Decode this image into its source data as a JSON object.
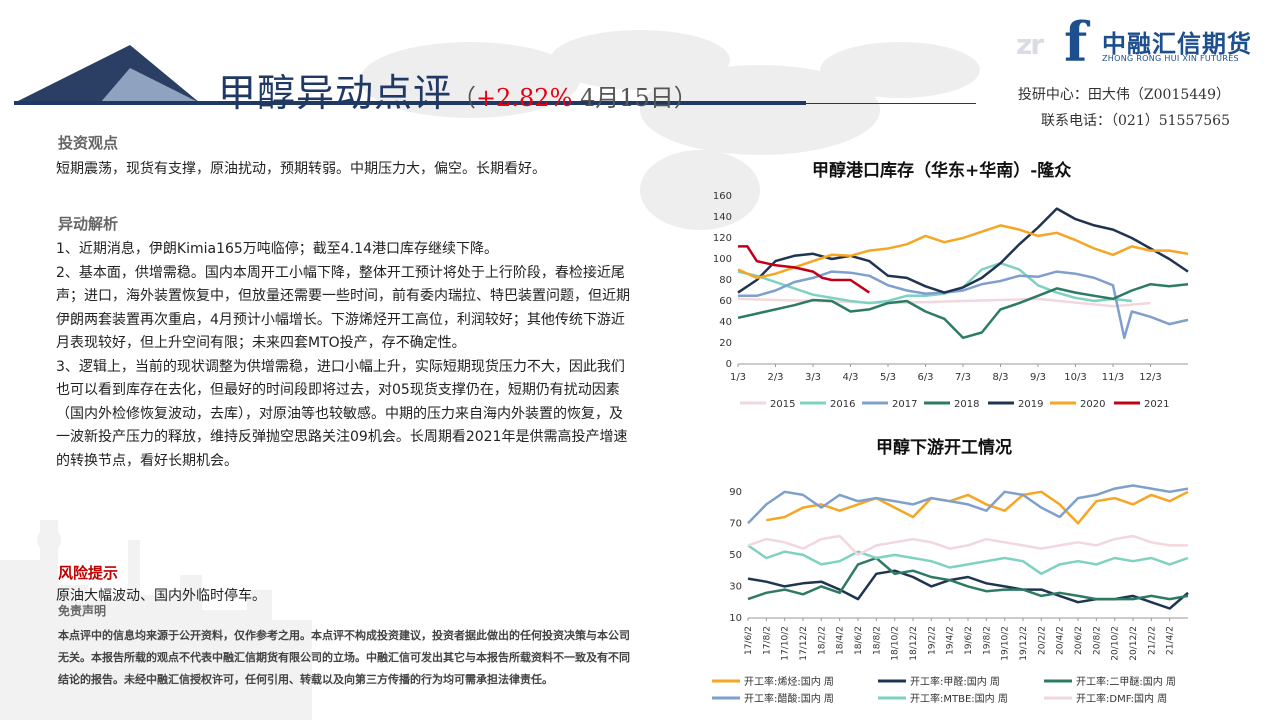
{
  "header": {
    "title": "甲醇异动点评",
    "open_paren": "（",
    "change": "+2.82%",
    "date": " 4月15日）",
    "logo_cn": "中融汇信期货",
    "logo_en": "ZHONG RONG HUI XIN FUTURES",
    "logo_f": "f",
    "logo_mark": "zr",
    "analyst": "投研中心：田大伟（Z0015449）",
    "phone": "联系电话：（021）51557565"
  },
  "view": {
    "heading": "投资观点",
    "text": "短期震荡，现货有支撑，原油扰动，预期转弱。中期压力大，偏空。长期看好。"
  },
  "analysis": {
    "heading": "异动解析",
    "p1": "1、近期消息，伊朗Kimia165万吨临停；截至4.14港口库存继续下降。",
    "p2": "2、基本面，供增需稳。国内本周开工小幅下降，整体开工预计将处于上行阶段，春检接近尾声；进口，海外装置恢复中，但放量还需要一些时间，前有委内瑞拉、特巴装置问题，但近期伊朗两套装置再次重启，4月预计小幅增长。下游烯烃开工高位，利润较好；其他传统下游近月表现较好，但上升空间有限；未来四套MTO投产，存不确定性。",
    "p3": "3、逻辑上，当前的现状调整为供增需稳，进口小幅上升，实际短期现货压力不大，因此我们也可以看到库存在去化，但最好的时间段即将过去，对05现货支撑仍在，短期仍有扰动因素（国内外检修恢复波动，去库），对原油等也较敏感。中期的压力来自海内外装置的恢复，及一波新投产压力的释放，维持反弹抛空思路关注09机会。长周期看2021年是供需高投产增速的转换节点，看好长期机会。"
  },
  "risk": {
    "heading": "风险提示",
    "text": "原油大幅波动、国内外临时停车。"
  },
  "disclaimer": {
    "heading": "免责声明",
    "text": "本点评中的信息均来源于公开资料，仅作参考之用。本点评不构成投资建议，投资者据此做出的任何投资决策与本公司无关。本报告所载的观点不代表中融汇信期货有限公司的立场。中融汇信可发出其它与本报告所载资料不一致及有不同结论的报告。未经中融汇信授权许可，任何引用、转载以及向第三方传播的行为均可需承担法律责任。"
  },
  "colors": {
    "navy": "#1f3864",
    "accent_red": "#e60012",
    "s2015": "#f2d7dc",
    "s2016": "#7fd1c2",
    "s2017": "#7f9fcc",
    "s2018": "#2e7b64",
    "s2019": "#1f3451",
    "s2020": "#f5a623",
    "s2021": "#c0001a"
  },
  "chart_data": [
    {
      "type": "line",
      "title": "甲醇港口库存（华东+华南）-隆众",
      "x_ticks": [
        "1/3",
        "2/3",
        "3/3",
        "4/3",
        "5/3",
        "6/3",
        "7/3",
        "8/3",
        "9/3",
        "10/3",
        "11/3",
        "12/3"
      ],
      "ylim": [
        0,
        160
      ],
      "y_ticks": [
        0,
        20,
        40,
        60,
        80,
        100,
        120,
        140,
        160
      ],
      "legend_position": "bottom",
      "series": [
        {
          "name": "2015",
          "color": "#f2d7dc",
          "x": [
            1,
            3,
            5,
            7,
            9,
            11,
            12
          ],
          "y": [
            62,
            60,
            58,
            60,
            62,
            55,
            58
          ]
        },
        {
          "name": "2016",
          "color": "#7fd1c2",
          "x": [
            1,
            1.5,
            2,
            2.5,
            3,
            3.5,
            4,
            4.5,
            5,
            5.5,
            6,
            6.5,
            7,
            7.5,
            8,
            8.5,
            9,
            9.5,
            10,
            10.5,
            11,
            11.5
          ],
          "y": [
            88,
            84,
            78,
            72,
            66,
            63,
            60,
            58,
            60,
            65,
            65,
            67,
            73,
            90,
            96,
            90,
            75,
            68,
            63,
            60,
            62,
            60
          ]
        },
        {
          "name": "2017",
          "color": "#7f9fcc",
          "x": [
            1,
            1.5,
            2,
            2.5,
            3,
            3.5,
            4,
            4.5,
            5,
            5.5,
            6,
            6.5,
            7,
            7.5,
            8,
            8.5,
            9,
            9.5,
            10,
            10.5,
            11,
            11.3,
            11.5,
            12,
            12.5,
            13
          ],
          "y": [
            65,
            65,
            70,
            78,
            82,
            88,
            87,
            84,
            75,
            70,
            67,
            68,
            70,
            76,
            79,
            84,
            83,
            88,
            86,
            82,
            75,
            25,
            50,
            45,
            38,
            42
          ]
        },
        {
          "name": "2018",
          "color": "#2e7b64",
          "x": [
            1,
            1.5,
            2,
            2.5,
            3,
            3.5,
            4,
            4.5,
            5,
            5.5,
            6,
            6.5,
            7,
            7.5,
            8,
            8.5,
            9,
            9.5,
            10,
            10.5,
            11,
            11.5,
            12,
            12.5,
            13
          ],
          "y": [
            44,
            48,
            52,
            56,
            61,
            60,
            50,
            52,
            58,
            60,
            50,
            43,
            25,
            30,
            52,
            58,
            65,
            72,
            68,
            65,
            62,
            70,
            76,
            74,
            76
          ]
        },
        {
          "name": "2019",
          "color": "#1f3451",
          "x": [
            1,
            1.5,
            2,
            2.5,
            3,
            3.5,
            4,
            4.5,
            5,
            5.5,
            6,
            6.5,
            7,
            7.5,
            8,
            8.5,
            9,
            9.5,
            10,
            10.5,
            11,
            11.5,
            12,
            12.5,
            13
          ],
          "y": [
            68,
            80,
            98,
            103,
            105,
            100,
            103,
            98,
            84,
            82,
            74,
            68,
            73,
            82,
            96,
            114,
            130,
            148,
            138,
            132,
            128,
            120,
            110,
            100,
            88
          ]
        },
        {
          "name": "2020",
          "color": "#f5a623",
          "x": [
            1,
            1.5,
            2,
            2.5,
            3,
            3.5,
            4,
            4.5,
            5,
            5.5,
            6,
            6.5,
            7,
            7.5,
            8,
            8.5,
            9,
            9.5,
            10,
            10.5,
            11,
            11.5,
            12,
            12.5,
            13
          ],
          "y": [
            90,
            82,
            86,
            92,
            98,
            104,
            103,
            108,
            110,
            114,
            122,
            116,
            120,
            126,
            132,
            128,
            122,
            125,
            118,
            110,
            104,
            112,
            108,
            108,
            105
          ]
        },
        {
          "name": "2021",
          "color": "#c0001a",
          "x": [
            1,
            1.25,
            1.5,
            2,
            2.5,
            3,
            3.25,
            3.5,
            4,
            4.5
          ],
          "y": [
            112,
            112,
            98,
            94,
            92,
            88,
            82,
            80,
            80,
            68
          ]
        }
      ]
    },
    {
      "type": "line",
      "title": "甲醇下游开工情况",
      "x_ticks": [
        "17/6/2",
        "17/8/2",
        "17/10/2",
        "17/12/2",
        "18/2/2",
        "18/4/2",
        "18/6/2",
        "18/8/2",
        "18/10/2",
        "18/12/2",
        "19/2/2",
        "19/4/2",
        "19/6/2",
        "19/8/2",
        "19/10/2",
        "19/12/2",
        "20/2/2",
        "20/4/2",
        "20/6/2",
        "20/8/2",
        "20/10/2",
        "20/12/2",
        "21/2/2",
        "21/4/2"
      ],
      "ylim": [
        10,
        100
      ],
      "y_ticks": [
        10,
        30,
        50,
        70,
        90
      ],
      "legend_position": "bottom",
      "series": [
        {
          "name": "开工率:烯烃:国内 周",
          "color": "#f5a623",
          "x": [
            2,
            3,
            4,
            5,
            6,
            7,
            8,
            9,
            10,
            11,
            12,
            13,
            14,
            15,
            16,
            17,
            18,
            19,
            20,
            21,
            22,
            23,
            24,
            25
          ],
          "y": [
            72,
            74,
            80,
            82,
            78,
            82,
            86,
            80,
            74,
            86,
            84,
            88,
            82,
            78,
            88,
            90,
            82,
            70,
            84,
            86,
            82,
            88,
            84,
            90
          ]
        },
        {
          "name": "开工率:甲醛:国内 周",
          "color": "#1f3451",
          "x": [
            1,
            2,
            3,
            4,
            5,
            6,
            7,
            8,
            9,
            10,
            11,
            12,
            13,
            14,
            15,
            16,
            17,
            18,
            19,
            20,
            21,
            22,
            23,
            24,
            25
          ],
          "y": [
            35,
            33,
            30,
            32,
            33,
            28,
            22,
            38,
            40,
            36,
            30,
            34,
            36,
            32,
            30,
            28,
            28,
            24,
            20,
            22,
            22,
            24,
            20,
            16,
            26
          ]
        },
        {
          "name": "开工率:二甲醚:国内 周",
          "color": "#2e7b64",
          "x": [
            1,
            2,
            3,
            4,
            5,
            6,
            7,
            8,
            9,
            10,
            11,
            12,
            13,
            14,
            15,
            16,
            17,
            18,
            19,
            20,
            21,
            22,
            23,
            24,
            25
          ],
          "y": [
            22,
            26,
            28,
            25,
            30,
            26,
            44,
            48,
            38,
            40,
            36,
            34,
            30,
            27,
            28,
            28,
            24,
            26,
            24,
            22,
            22,
            22,
            24,
            22,
            24
          ]
        },
        {
          "name": "开工率:醋酸:国内 周",
          "color": "#7f9fcc",
          "x": [
            1,
            2,
            3,
            4,
            5,
            6,
            7,
            8,
            9,
            10,
            11,
            12,
            13,
            14,
            15,
            16,
            17,
            18,
            19,
            20,
            21,
            22,
            23,
            24,
            25
          ],
          "y": [
            70,
            82,
            90,
            88,
            80,
            88,
            84,
            86,
            84,
            82,
            86,
            84,
            82,
            78,
            90,
            88,
            80,
            74,
            86,
            88,
            92,
            94,
            92,
            90,
            92
          ]
        },
        {
          "name": "开工率:MTBE:国内 周",
          "color": "#7fd1c2",
          "x": [
            1,
            2,
            3,
            4,
            5,
            6,
            7,
            8,
            9,
            10,
            11,
            12,
            13,
            14,
            15,
            16,
            17,
            18,
            19,
            20,
            21,
            22,
            23,
            24,
            25
          ],
          "y": [
            56,
            48,
            52,
            50,
            44,
            46,
            52,
            48,
            50,
            48,
            46,
            42,
            44,
            46,
            48,
            46,
            38,
            44,
            46,
            44,
            48,
            46,
            48,
            44,
            48
          ]
        },
        {
          "name": "开工率:DMF:国内 周",
          "color": "#f2d7dc",
          "x": [
            1,
            2,
            3,
            4,
            5,
            6,
            7,
            8,
            9,
            10,
            11,
            12,
            13,
            14,
            15,
            16,
            17,
            18,
            19,
            20,
            21,
            22,
            23,
            24,
            25
          ],
          "y": [
            56,
            60,
            58,
            54,
            60,
            62,
            50,
            56,
            58,
            60,
            58,
            54,
            56,
            60,
            58,
            56,
            54,
            56,
            58,
            56,
            60,
            62,
            58,
            56,
            56
          ]
        }
      ]
    }
  ]
}
